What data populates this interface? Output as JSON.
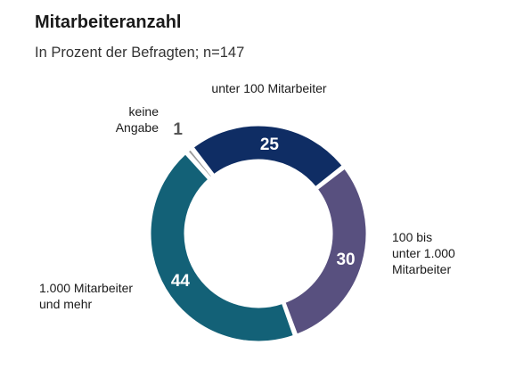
{
  "chart_data": {
    "type": "pie",
    "title": "Mitarbeiteranzahl",
    "subtitle": "In Prozent der Befragten; n=147",
    "slices": [
      {
        "label": [
          "unter 100 Mitarbeiter"
        ],
        "value": 25,
        "value_label": "25",
        "color": "#0f2d64",
        "value_color": "#ffffff"
      },
      {
        "label": [
          "100 bis",
          "unter 1.000",
          "Mitarbeiter"
        ],
        "value": 30,
        "value_label": "30",
        "color": "#58507f",
        "value_color": "#ffffff"
      },
      {
        "label": [
          "1.000 Mitarbeiter",
          "und mehr"
        ],
        "value": 44,
        "value_label": "44",
        "color": "#136177",
        "value_color": "#ffffff"
      },
      {
        "label": [
          "keine",
          "Angabe"
        ],
        "value": 1,
        "value_label": "1",
        "color": "#9b9b9b",
        "value_color": "#555555"
      }
    ]
  }
}
